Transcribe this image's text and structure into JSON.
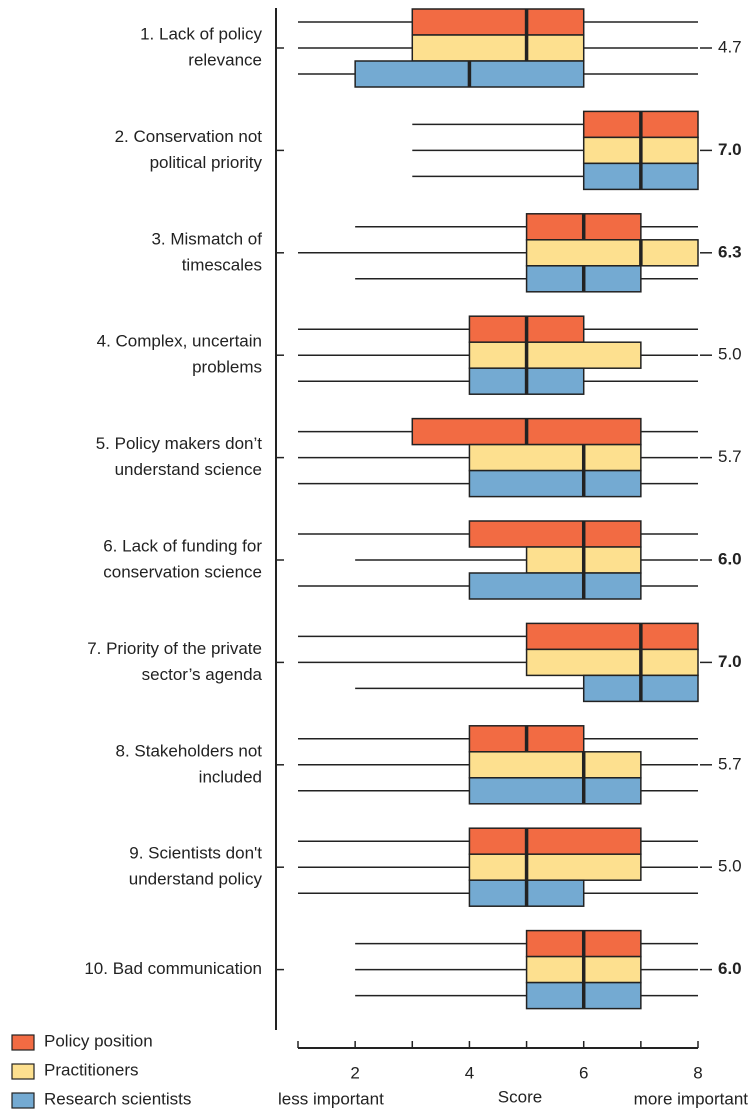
{
  "chart_data": {
    "type": "boxplot",
    "orientation": "horizontal",
    "categories": [
      [
        "1. Lack of policy",
        "relevance"
      ],
      [
        "2. Conservation not",
        "political priority"
      ],
      [
        "3. Mismatch of",
        "timescales"
      ],
      [
        "4. Complex, uncertain",
        "problems"
      ],
      [
        "5. Policy makers don’t",
        "understand science"
      ],
      [
        "6. Lack of funding for",
        "conservation science"
      ],
      [
        "7. Priority of the private",
        "sector’s agenda"
      ],
      [
        "8. Stakeholders not",
        "included"
      ],
      [
        "9. Scientists don't",
        "understand policy"
      ],
      [
        "10. Bad communication"
      ]
    ],
    "series": [
      {
        "name": "Policy position",
        "color": "#f26b43",
        "min": [
          1,
          3,
          2,
          1,
          1,
          1,
          1,
          1,
          1,
          2
        ],
        "q1": [
          3,
          6,
          5,
          4,
          3,
          4,
          5,
          4,
          4,
          5
        ],
        "median": [
          5,
          7,
          6,
          5,
          5,
          6,
          7,
          5,
          5,
          6
        ],
        "q3": [
          6,
          8,
          7,
          6,
          7,
          7,
          8,
          6,
          7,
          7
        ],
        "max": [
          8,
          8,
          8,
          8,
          8,
          8,
          8,
          8,
          8,
          8
        ]
      },
      {
        "name": "Practitioners",
        "color": "#fde08f",
        "min": [
          1,
          3,
          1,
          1,
          1,
          2,
          1,
          1,
          1,
          2
        ],
        "q1": [
          3,
          6,
          5,
          4,
          4,
          5,
          5,
          4,
          4,
          5
        ],
        "median": [
          5,
          7,
          7,
          5,
          6,
          6,
          7,
          6,
          5,
          6
        ],
        "q3": [
          6,
          8,
          8,
          7,
          7,
          7,
          8,
          7,
          7,
          7
        ],
        "max": [
          8,
          8,
          8,
          8,
          8,
          8,
          8,
          8,
          8,
          8
        ]
      },
      {
        "name": "Research scientists",
        "color": "#74aad2",
        "min": [
          1,
          3,
          2,
          1,
          1,
          1,
          2,
          1,
          1,
          2
        ],
        "q1": [
          2,
          6,
          5,
          4,
          4,
          4,
          6,
          4,
          4,
          5
        ],
        "median": [
          4,
          7,
          6,
          5,
          6,
          6,
          7,
          6,
          5,
          6
        ],
        "q3": [
          6,
          8,
          7,
          6,
          7,
          7,
          8,
          7,
          6,
          7
        ],
        "max": [
          8,
          8,
          8,
          8,
          8,
          8,
          8,
          8,
          8,
          8
        ]
      }
    ],
    "scores": [
      4.7,
      7,
      6.3,
      5,
      5.7,
      6,
      7,
      5.7,
      5,
      6
    ],
    "value_labels": [
      "4.7",
      "7.0",
      "6.3",
      "5.0",
      "5.7",
      "6.0",
      "7.0",
      "5.7",
      "5.0",
      "6.0"
    ],
    "bold_scores": [
      false,
      true,
      true,
      false,
      false,
      true,
      true,
      false,
      false,
      true
    ],
    "xlim": [
      1,
      8
    ],
    "xticks": [
      2,
      4,
      6,
      8
    ],
    "xminorticks": [
      1,
      3,
      5,
      7
    ],
    "xlabel": "Score",
    "xlabel_left": "less important",
    "xlabel_right": "more important",
    "legend": "bottom-left"
  }
}
